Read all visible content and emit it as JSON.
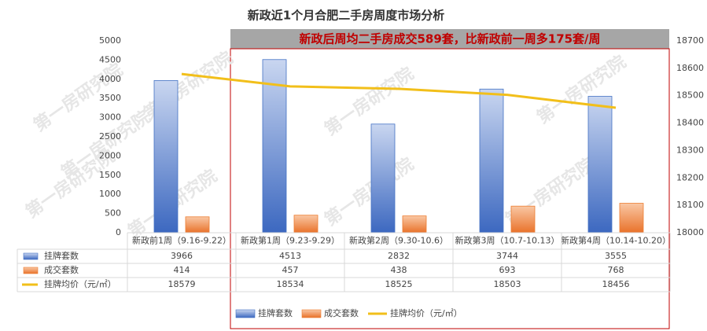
{
  "chart_data": {
    "type": "bar",
    "title": "新政近1个月合肥二手房周度市场分析",
    "annotation": "新政后周均二手房成交589套，比新政前一周多175套/周",
    "watermark": "第一房研究院",
    "categories": [
      "新政前1周（9.16-9.22）",
      "新政第1周（9.23-9.29）",
      "新政第2周（9.30-10.6）",
      "新政第3周（10.7-10.13）",
      "新政第4周（10.14-10.20）"
    ],
    "series": [
      {
        "name": "挂牌套数",
        "color": "#4472c4",
        "values": [
          3966,
          4513,
          2832,
          3744,
          3555
        ]
      },
      {
        "name": "成交套数",
        "color": "#ed7d31",
        "values": [
          414,
          457,
          438,
          693,
          768
        ]
      },
      {
        "name": "挂牌均价（元/㎡）",
        "color": "#f2bf1a",
        "axis": "y2",
        "values": [
          18579,
          18534,
          18525,
          18503,
          18456
        ]
      }
    ],
    "ylim": [
      0,
      5000
    ],
    "yticks": [
      0,
      500,
      1000,
      1500,
      2000,
      2500,
      3000,
      3500,
      4000,
      4500,
      5000
    ],
    "y2lim": [
      18000,
      18700
    ],
    "y2ticks": [
      18000,
      18100,
      18200,
      18300,
      18400,
      18500,
      18600,
      18700
    ]
  }
}
